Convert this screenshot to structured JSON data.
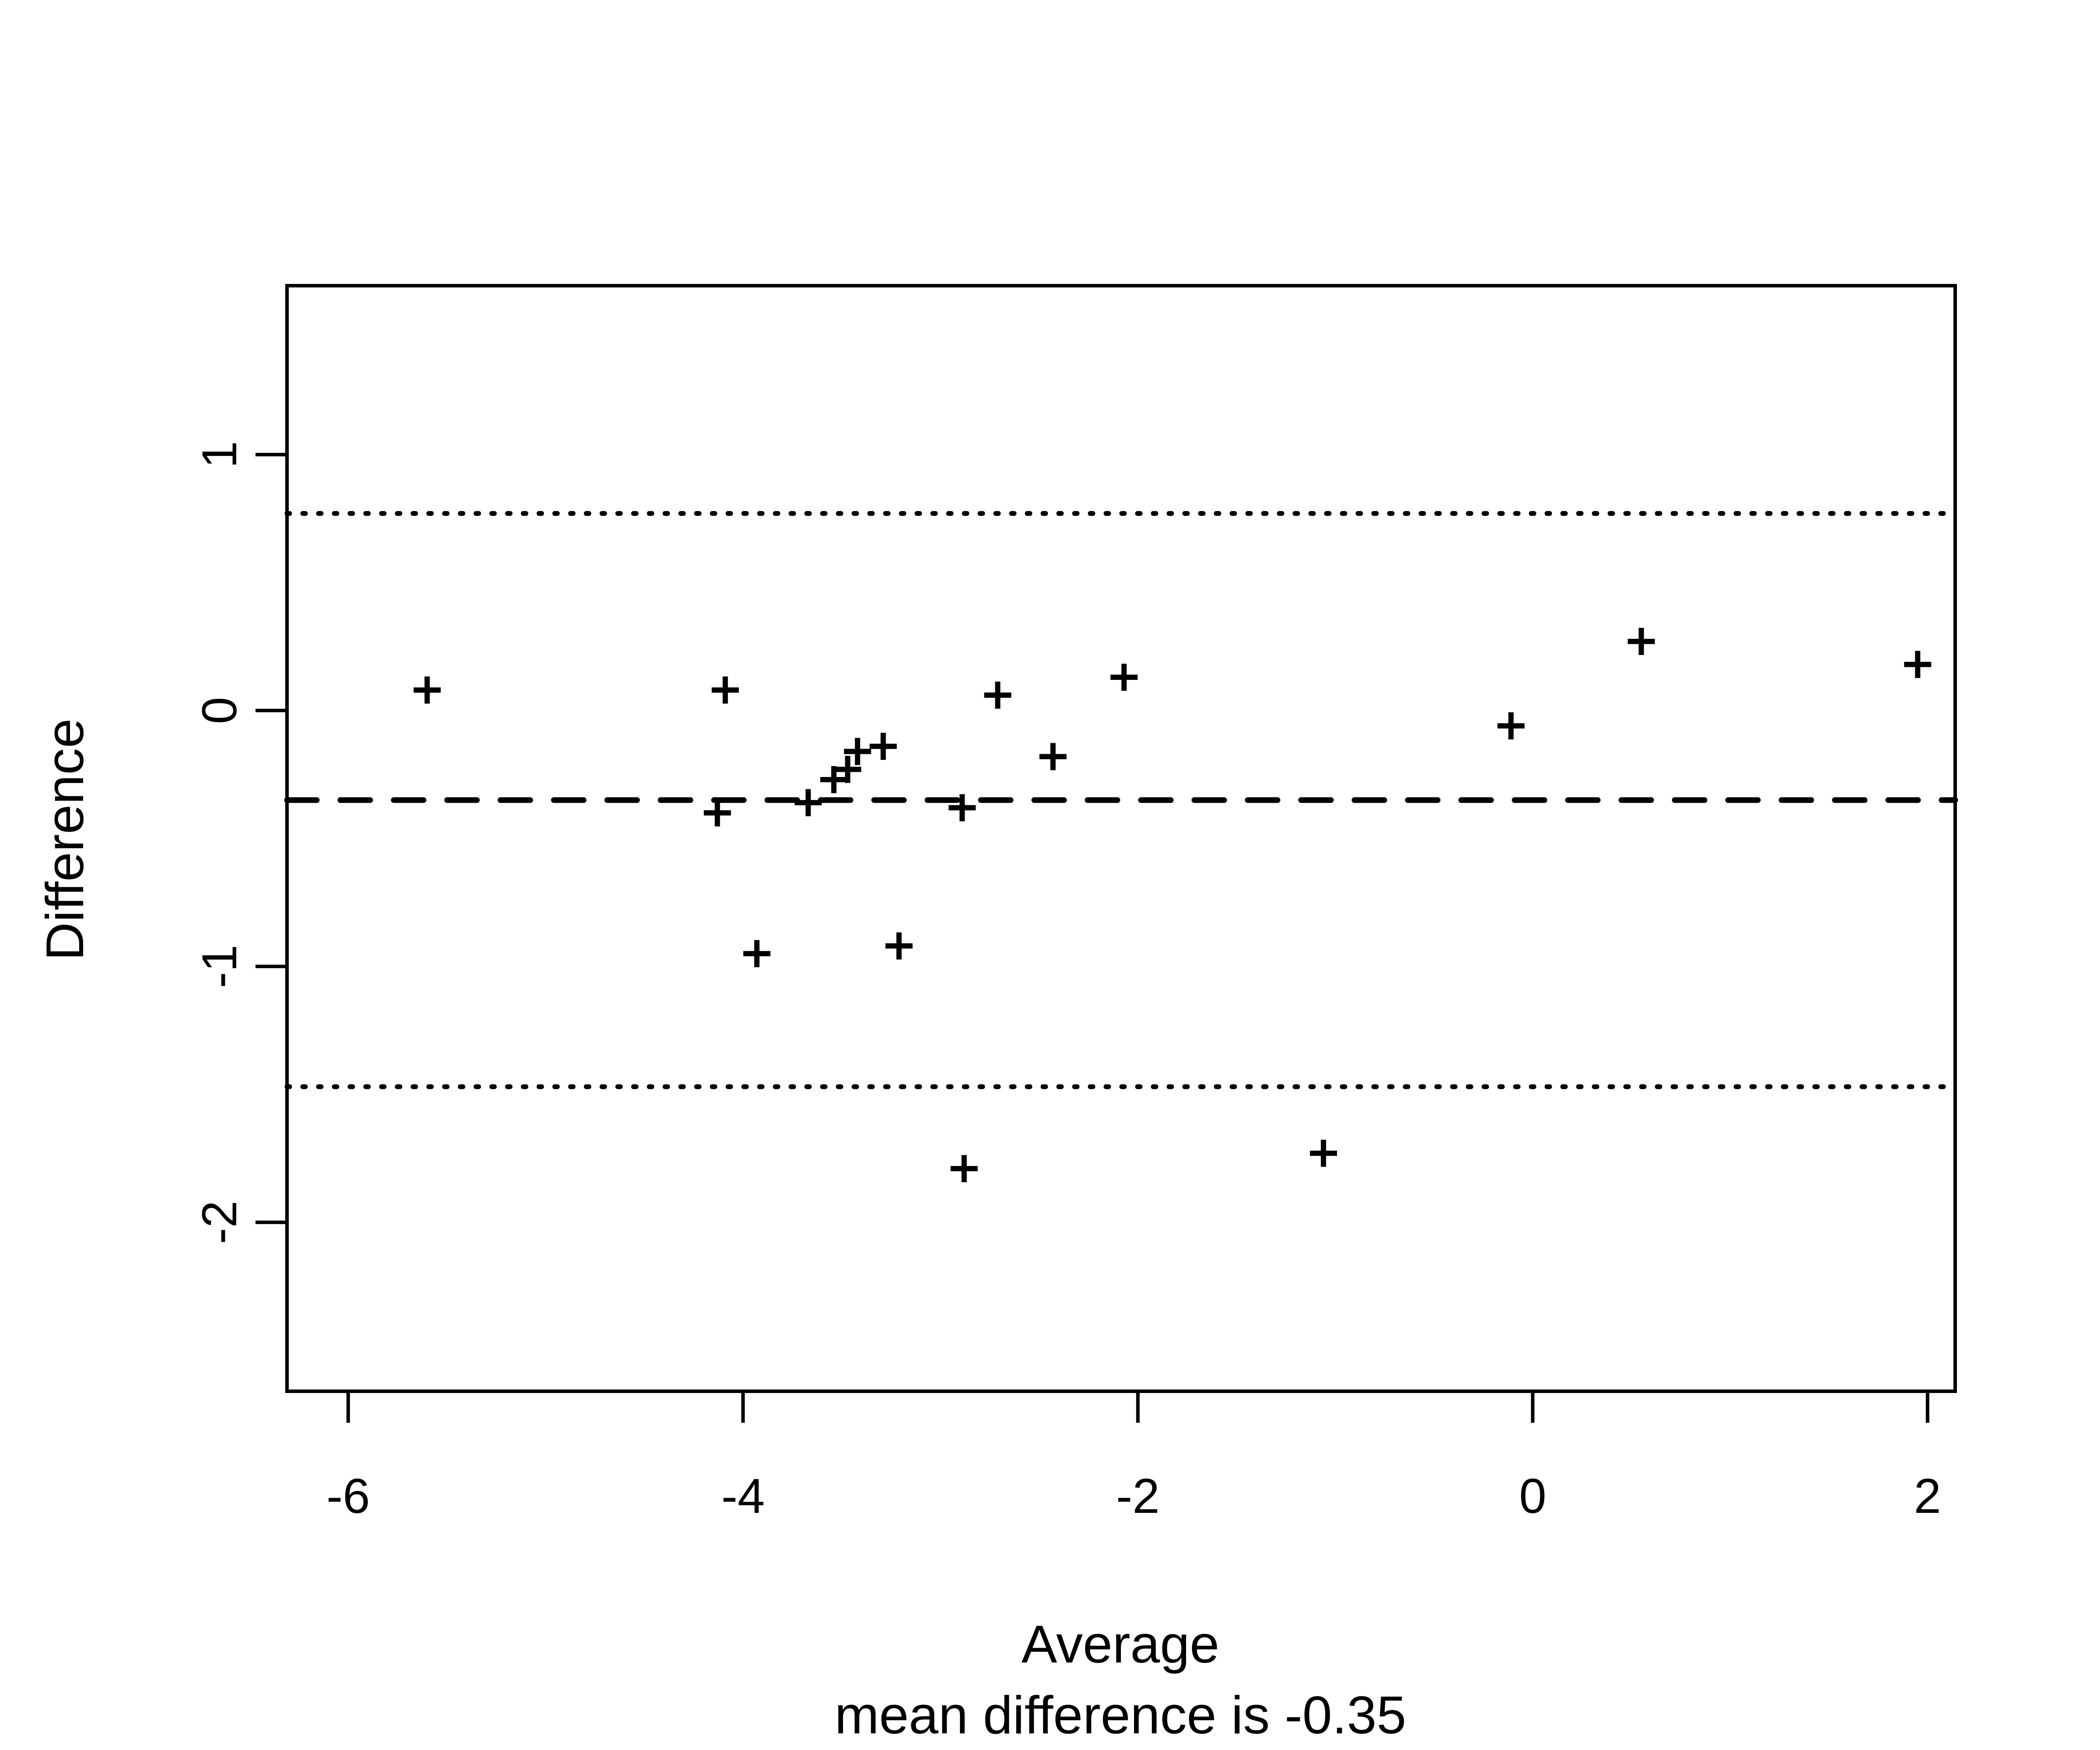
{
  "chart_data": {
    "type": "scatter",
    "title": "",
    "xlabel": "Average",
    "xlabel_sub": "mean difference is -0.35",
    "ylabel": "Difference",
    "mean_difference": -0.35,
    "upper_limit": 0.77,
    "lower_limit": -1.47,
    "color": "#000000",
    "background": "#ffffff",
    "marker": "plus",
    "grid": false,
    "legend": null,
    "xlim": [
      -6.31,
      2.14
    ],
    "ylim": [
      -2.66,
      1.66
    ],
    "x_ticks": [
      "-6",
      "-4",
      "-2",
      "0",
      "2"
    ],
    "x_tick_values": [
      -6,
      -4,
      -2,
      0,
      2
    ],
    "y_ticks": [
      "-2",
      "-1",
      "0",
      "1"
    ],
    "y_tick_values": [
      -2,
      -1,
      0,
      1
    ],
    "lines": [
      {
        "name": "mean-difference-line",
        "value": -0.35,
        "style": "dashed"
      },
      {
        "name": "upper-limit-line",
        "value": 0.77,
        "style": "dotted"
      },
      {
        "name": "lower-limit-line",
        "value": -1.47,
        "style": "dotted"
      }
    ],
    "points": [
      [
        -5.6,
        0.08
      ],
      [
        -4.09,
        0.08
      ],
      [
        -4.13,
        -0.4
      ],
      [
        -3.93,
        -0.95
      ],
      [
        -3.67,
        -0.36
      ],
      [
        -3.54,
        -0.27
      ],
      [
        -3.47,
        -0.23
      ],
      [
        -3.42,
        -0.16
      ],
      [
        -3.29,
        -0.14
      ],
      [
        -3.21,
        -0.92
      ],
      [
        -2.89,
        -0.38
      ],
      [
        -2.88,
        -1.79
      ],
      [
        -2.71,
        0.06
      ],
      [
        -2.43,
        -0.18
      ],
      [
        -2.07,
        0.13
      ],
      [
        -1.06,
        -1.73
      ],
      [
        -0.11,
        -0.06
      ],
      [
        0.55,
        0.27
      ],
      [
        1.95,
        0.18
      ]
    ]
  }
}
